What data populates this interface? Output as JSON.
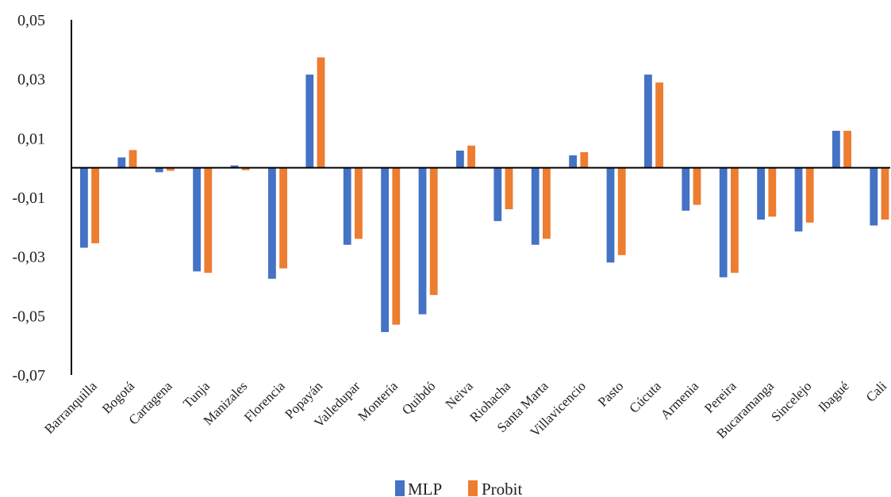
{
  "chart_data": {
    "type": "bar",
    "categories": [
      "Barranquilla",
      "Bogotá",
      "Cartagena",
      "Tunja",
      "Manizales",
      "Florencia",
      "Popayán",
      "Valledupar",
      "Montería",
      "Quibdó",
      "Neiva",
      "Riohacha",
      "Santa Marta",
      "Villavicencio",
      "Pasto",
      "Cúcuta",
      "Armenia",
      "Pereira",
      "Bucaramanga",
      "Sincelejo",
      "Ibagué",
      "Cali"
    ],
    "series": [
      {
        "name": "MLP",
        "color": "#4472c4",
        "values": [
          -0.027,
          0.0035,
          -0.0015,
          -0.035,
          0.0008,
          -0.0375,
          0.0315,
          -0.026,
          -0.0555,
          -0.0495,
          0.0058,
          -0.018,
          -0.026,
          0.0042,
          -0.032,
          0.0315,
          -0.0145,
          -0.037,
          -0.0175,
          -0.0215,
          0.0125,
          -0.0195
        ]
      },
      {
        "name": "Probit",
        "color": "#ed7d31",
        "values": [
          -0.0255,
          0.006,
          -0.001,
          -0.0355,
          -0.0008,
          -0.034,
          0.0373,
          -0.024,
          -0.053,
          -0.043,
          0.0075,
          -0.014,
          -0.024,
          0.0053,
          -0.0295,
          0.0288,
          -0.0125,
          -0.0355,
          -0.0165,
          -0.0185,
          0.0125,
          -0.0175
        ]
      }
    ],
    "y_ticks": [
      "0,05",
      "0,03",
      "0,01",
      "-0,01",
      "-0,03",
      "-0,05",
      "-0,07"
    ],
    "ylim": [
      -0.07,
      0.05
    ],
    "legend_position": "bottom",
    "grid": false
  }
}
